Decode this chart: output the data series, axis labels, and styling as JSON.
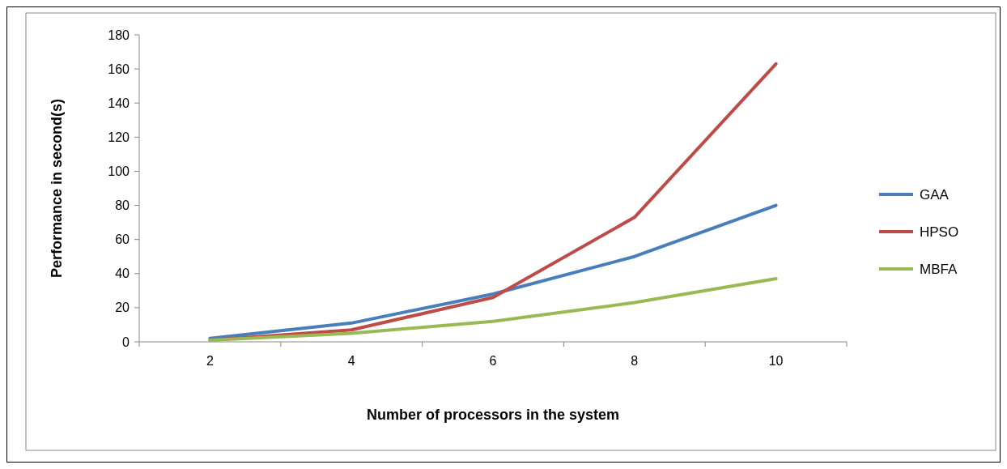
{
  "chart_data": {
    "type": "line",
    "xlabel": "Number of processors in the system",
    "ylabel": "Performance in second(s)",
    "categories": [
      "2",
      "4",
      "6",
      "8",
      "10"
    ],
    "series": [
      {
        "name": "GAA",
        "color": "#4a7ebb",
        "values": [
          2,
          11,
          28,
          50,
          80
        ]
      },
      {
        "name": "HPSO",
        "color": "#be4b48",
        "values": [
          1,
          7,
          26,
          73,
          163
        ]
      },
      {
        "name": "MBFA",
        "color": "#98b954",
        "values": [
          1,
          5,
          12,
          23,
          37
        ]
      }
    ],
    "ylim": [
      0,
      180
    ],
    "yticks": [
      0,
      20,
      40,
      60,
      80,
      100,
      120,
      140,
      160,
      180
    ],
    "legend": "right",
    "marker": "none",
    "line_style": "solid",
    "grid": false
  }
}
